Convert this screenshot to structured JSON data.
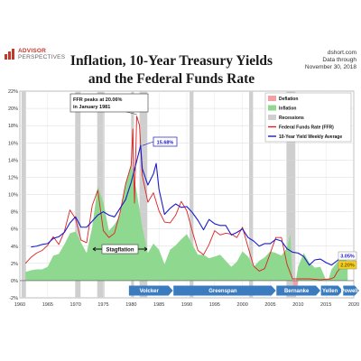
{
  "header": {
    "logo_line1": "ADVISOR",
    "logo_line2": "PERSPECTIVES",
    "title_line1": "Inflation, 10-Year Treasury Yields",
    "title_line2": "and the Federal Funds Rate",
    "source_line1": "dshort.com",
    "source_line2": "Data through",
    "source_line3": "November 30, 2018"
  },
  "chart_data": {
    "type": "line",
    "xlim": [
      1960,
      2020
    ],
    "ylim": [
      -2,
      22
    ],
    "x_ticks": [
      1960,
      1965,
      1970,
      1975,
      1980,
      1985,
      1990,
      1995,
      2000,
      2005,
      2010,
      2015,
      2020
    ],
    "y_ticks": [
      -2,
      0,
      2,
      4,
      6,
      8,
      10,
      12,
      14,
      16,
      18,
      20,
      22
    ],
    "y_tick_labels": [
      "-2%",
      "0%",
      "2%",
      "4%",
      "6%",
      "8%",
      "10%",
      "12%",
      "14%",
      "16%",
      "18%",
      "20%",
      "22%"
    ],
    "grid": true,
    "legend_position": "top-right",
    "legend": [
      "Deflation",
      "Inflation",
      "Recessions",
      "Federal Funds Rate (FFR)",
      "10-Year Yield Weekly Average"
    ],
    "colors": {
      "deflation": "#f2a0a0",
      "inflation": "#8fd88f",
      "recession": "#cfcfcf",
      "ffr": "#e02020",
      "yield": "#1a1acc",
      "era_arrow": "#3b7bbf"
    },
    "recessions": [
      [
        1960.3,
        1961.1
      ],
      [
        1969.9,
        1970.9
      ],
      [
        1973.9,
        1975.2
      ],
      [
        1980.0,
        1980.5
      ],
      [
        1981.5,
        1982.9
      ],
      [
        1990.5,
        1991.2
      ],
      [
        2001.2,
        2001.9
      ],
      [
        2007.9,
        2009.5
      ]
    ],
    "inflation": {
      "x": [
        1961,
        1962,
        1963,
        1964,
        1965,
        1966,
        1967,
        1968,
        1969,
        1970,
        1971,
        1972,
        1973,
        1974,
        1975,
        1976,
        1977,
        1978,
        1979,
        1980,
        1981,
        1982,
        1983,
        1984,
        1985,
        1986,
        1987,
        1988,
        1989,
        1990,
        1991,
        1992,
        1993,
        1994,
        1995,
        1996,
        1997,
        1998,
        1999,
        2000,
        2001,
        2002,
        2003,
        2004,
        2005,
        2006,
        2007,
        2008,
        2008.6,
        2009,
        2009.6,
        2010,
        2011,
        2012,
        2013,
        2014,
        2015,
        2015.5,
        2016,
        2017,
        2018,
        2018.9
      ],
      "values": [
        1.0,
        1.2,
        1.3,
        1.3,
        1.6,
        2.9,
        3.1,
        4.2,
        5.5,
        5.7,
        4.4,
        3.2,
        6.2,
        11.0,
        9.1,
        5.8,
        6.5,
        7.6,
        11.3,
        13.5,
        10.3,
        6.2,
        3.2,
        4.3,
        3.6,
        1.9,
        3.6,
        4.1,
        4.8,
        5.4,
        4.2,
        3.0,
        3.0,
        2.6,
        2.8,
        3.0,
        2.3,
        1.6,
        2.2,
        3.4,
        2.8,
        1.6,
        2.3,
        2.7,
        3.4,
        3.2,
        2.9,
        3.8,
        5.4,
        0.0,
        -2.0,
        1.6,
        3.2,
        2.1,
        1.5,
        1.6,
        0.1,
        0.2,
        1.3,
        2.1,
        2.9,
        2.2
      ]
    },
    "ffr": {
      "x": [
        1961,
        1962,
        1963,
        1964,
        1965,
        1966,
        1967,
        1968,
        1969,
        1970,
        1971,
        1972,
        1973,
        1974,
        1975,
        1976,
        1977,
        1978,
        1979,
        1980,
        1980.3,
        1980.6,
        1981,
        1981.5,
        1982,
        1983,
        1984,
        1985,
        1986,
        1987,
        1988,
        1989,
        1990,
        1991,
        1992,
        1993,
        1994,
        1995,
        1996,
        1997,
        1998,
        1999,
        2000,
        2001,
        2002,
        2003,
        2004,
        2005,
        2006,
        2007,
        2008,
        2009,
        2010,
        2012,
        2014,
        2015.9,
        2016.5,
        2017,
        2018,
        2018.9
      ],
      "values": [
        2.0,
        2.7,
        3.2,
        3.5,
        4.1,
        5.1,
        4.2,
        5.7,
        8.2,
        7.2,
        4.7,
        4.4,
        8.7,
        10.5,
        5.8,
        5.0,
        5.5,
        7.9,
        11.2,
        13.4,
        17.6,
        9.0,
        19.1,
        18.0,
        12.2,
        9.1,
        10.2,
        8.1,
        6.8,
        6.7,
        7.6,
        9.2,
        8.1,
        5.7,
        3.5,
        3.0,
        4.2,
        5.8,
        5.3,
        5.5,
        5.4,
        5.0,
        6.2,
        3.9,
        1.7,
        1.1,
        1.4,
        3.2,
        5.0,
        5.0,
        1.9,
        0.2,
        0.2,
        0.2,
        0.1,
        0.2,
        0.4,
        1.0,
        1.8,
        2.2
      ]
    },
    "yield_10y": {
      "x": [
        1962,
        1963,
        1964,
        1965,
        1966,
        1967,
        1968,
        1969,
        1970,
        1971,
        1972,
        1973,
        1974,
        1975,
        1976,
        1977,
        1978,
        1979,
        1980,
        1981,
        1981.7,
        1982,
        1983,
        1984,
        1984.5,
        1985,
        1986,
        1987,
        1988,
        1989,
        1990,
        1991,
        1992,
        1993,
        1994,
        1995,
        1996,
        1997,
        1998,
        1999,
        2000,
        2001,
        2002,
        2003,
        2004,
        2005,
        2006,
        2007,
        2008,
        2009,
        2010,
        2011,
        2012,
        2013,
        2014,
        2015,
        2016,
        2017,
        2018,
        2018.9
      ],
      "values": [
        3.9,
        4.0,
        4.2,
        4.3,
        4.9,
        5.1,
        5.6,
        6.7,
        7.4,
        6.2,
        6.2,
        6.9,
        7.6,
        8.0,
        7.6,
        7.4,
        8.4,
        9.4,
        11.4,
        13.9,
        15.7,
        13.0,
        11.1,
        12.4,
        13.6,
        10.6,
        7.7,
        8.4,
        8.9,
        8.5,
        8.6,
        7.9,
        7.0,
        5.9,
        7.1,
        6.6,
        6.4,
        6.4,
        5.3,
        5.6,
        6.0,
        5.0,
        4.6,
        4.0,
        4.3,
        4.3,
        4.8,
        4.6,
        3.7,
        3.3,
        3.2,
        2.8,
        1.8,
        2.4,
        2.5,
        2.1,
        1.8,
        2.3,
        2.9,
        3.1
      ]
    },
    "annotations": {
      "ffr_peak": "FFR peaks at 20.06% in January 1981",
      "yield_peak_label": "15.68%",
      "stagflation": "Stagflation",
      "latest_yield": "3.05%",
      "latest_inflation": "2.20%"
    },
    "eras": [
      {
        "name": "Volcker",
        "start": 1979.6,
        "end": 1987.5
      },
      {
        "name": "Greenspan",
        "start": 1987.6,
        "end": 2006.0
      },
      {
        "name": "Bernanke",
        "start": 2006.1,
        "end": 2014.0
      },
      {
        "name": "Yellen",
        "start": 2014.1,
        "end": 2018.0
      },
      {
        "name": "Powell",
        "start": 2018.1,
        "end": 2021.5
      }
    ]
  }
}
